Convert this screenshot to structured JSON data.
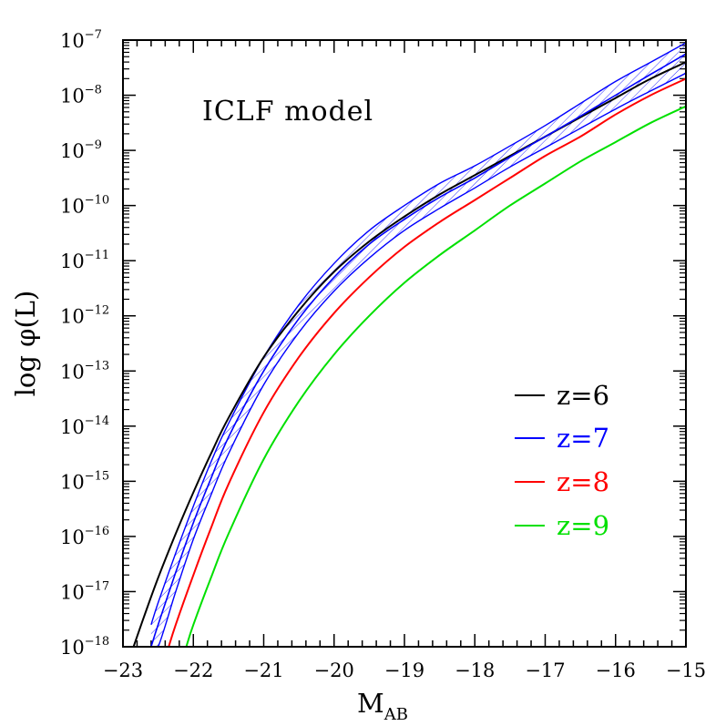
{
  "chart_data": {
    "type": "line",
    "title": "",
    "annotation": "ICLF model",
    "xlabel": "M",
    "xlabel_sub": "AB",
    "ylabel": "log φ(L)",
    "xlim": [
      -23,
      -15
    ],
    "ylim_log10": [
      -18,
      -7
    ],
    "y_scale": "log",
    "xticks": [
      "−23",
      "−22",
      "−21",
      "−20",
      "−19",
      "−18",
      "−17",
      "−16",
      "−15"
    ],
    "yticks": [
      {
        "base": "10",
        "exp": "−7"
      },
      {
        "base": "10",
        "exp": "−8"
      },
      {
        "base": "10",
        "exp": "−9"
      },
      {
        "base": "10",
        "exp": "−10"
      },
      {
        "base": "10",
        "exp": "−11"
      },
      {
        "base": "10",
        "exp": "−12"
      },
      {
        "base": "10",
        "exp": "−13"
      },
      {
        "base": "10",
        "exp": "−14"
      },
      {
        "base": "10",
        "exp": "−15"
      },
      {
        "base": "10",
        "exp": "−16"
      },
      {
        "base": "10",
        "exp": "−17"
      },
      {
        "base": "10",
        "exp": "−18"
      }
    ],
    "grid": false,
    "legend_position": "bottom-right",
    "series": [
      {
        "name": "z=6",
        "color": "#000000",
        "x": [
          -22.85,
          -22.7,
          -22.5,
          -22.25,
          -22.0,
          -21.75,
          -21.5,
          -21.0,
          -20.5,
          -20.0,
          -19.5,
          -19.0,
          -18.5,
          -18.0,
          -17.5,
          -17.0,
          -16.5,
          -16.0,
          -15.5,
          -15.0
        ],
        "logy": [
          -18.0,
          -17.45,
          -16.75,
          -15.95,
          -15.2,
          -14.5,
          -13.85,
          -12.75,
          -11.9,
          -11.2,
          -10.65,
          -10.2,
          -9.8,
          -9.45,
          -9.1,
          -8.75,
          -8.4,
          -8.05,
          -7.7,
          -7.4
        ]
      },
      {
        "name": "z=7",
        "color": "#0000ff",
        "x": [
          -22.6,
          -22.5,
          -22.25,
          -22.0,
          -21.75,
          -21.5,
          -21.0,
          -20.5,
          -20.0,
          -19.5,
          -19.0,
          -18.5,
          -18.0,
          -17.5,
          -17.0,
          -16.5,
          -16.0,
          -15.5,
          -15.0
        ],
        "logy": [
          -18.0,
          -17.6,
          -16.65,
          -15.75,
          -14.95,
          -14.2,
          -13.0,
          -12.05,
          -11.3,
          -10.7,
          -10.25,
          -9.85,
          -9.5,
          -9.12,
          -8.75,
          -8.38,
          -8.0,
          -7.62,
          -7.25
        ],
        "band_low_logy": [
          -18.0,
          -18.0,
          -17.0,
          -16.05,
          -15.25,
          -14.5,
          -13.25,
          -12.3,
          -11.55,
          -10.95,
          -10.45,
          -10.05,
          -9.68,
          -9.3,
          -8.95,
          -8.6,
          -8.25,
          -7.92,
          -7.6
        ],
        "band_high_logy": [
          -17.6,
          -17.2,
          -16.3,
          -15.45,
          -14.65,
          -13.95,
          -12.75,
          -11.8,
          -11.05,
          -10.45,
          -10.0,
          -9.6,
          -9.28,
          -8.92,
          -8.55,
          -8.15,
          -7.75,
          -7.4,
          -7.05
        ]
      },
      {
        "name": "z=8",
        "color": "#ff0000",
        "x": [
          -22.35,
          -22.25,
          -22.0,
          -21.75,
          -21.5,
          -21.0,
          -20.5,
          -20.0,
          -19.5,
          -19.0,
          -18.5,
          -18.0,
          -17.5,
          -17.0,
          -16.5,
          -16.0,
          -15.5,
          -15.0
        ],
        "logy": [
          -18.0,
          -17.6,
          -16.7,
          -15.85,
          -15.05,
          -13.75,
          -12.75,
          -11.95,
          -11.3,
          -10.75,
          -10.3,
          -9.9,
          -9.5,
          -9.1,
          -8.75,
          -8.35,
          -8.0,
          -7.7
        ]
      },
      {
        "name": "z=9",
        "color": "#00e000",
        "x": [
          -22.1,
          -22.0,
          -21.75,
          -21.5,
          -21.0,
          -20.5,
          -20.0,
          -19.5,
          -19.0,
          -18.5,
          -18.0,
          -17.5,
          -17.0,
          -16.5,
          -16.0,
          -15.5,
          -15.0
        ],
        "logy": [
          -18.0,
          -17.6,
          -16.75,
          -15.95,
          -14.6,
          -13.55,
          -12.7,
          -12.0,
          -11.4,
          -10.9,
          -10.45,
          -10.0,
          -9.6,
          -9.2,
          -8.85,
          -8.5,
          -8.2
        ]
      }
    ]
  }
}
